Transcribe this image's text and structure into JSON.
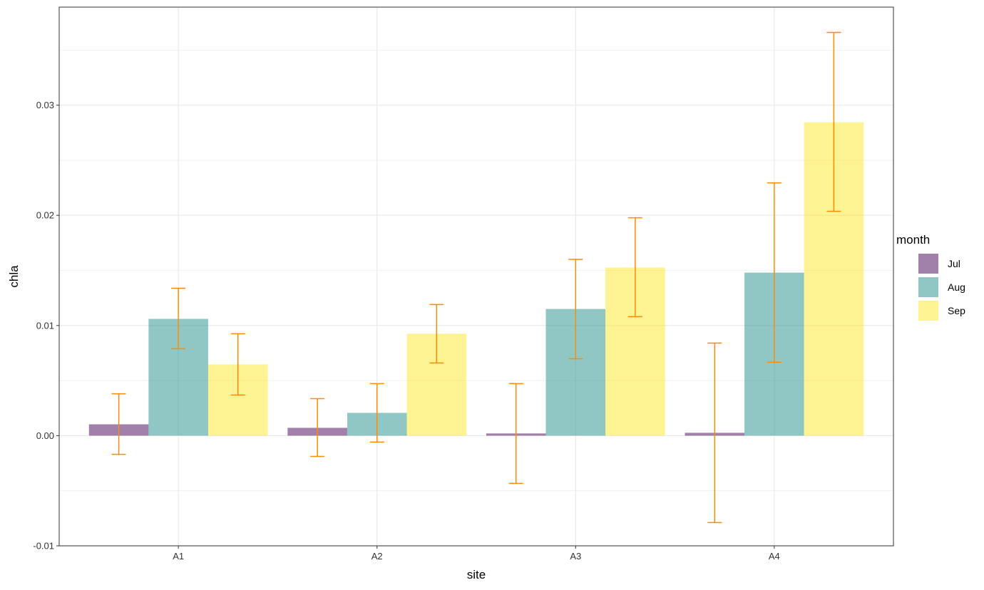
{
  "chart_data": {
    "type": "bar",
    "xlabel": "site",
    "ylabel": "chla",
    "categories": [
      "A1",
      "A2",
      "A3",
      "A4"
    ],
    "ylim": [
      -0.01,
      0.0389
    ],
    "yticks": [
      "-0.01",
      "0.00",
      "0.01",
      "0.02",
      "0.03"
    ],
    "grid": true,
    "legend": {
      "title": "month",
      "placement": "right"
    },
    "error_bar_color": "#FF8C00",
    "series": [
      {
        "name": "Jul",
        "color": "#440154",
        "values": [
          0.00103,
          0.00071,
          0.0002,
          0.00026
        ],
        "lower": [
          -0.0017,
          -0.00188,
          -0.00433,
          -0.00789
        ],
        "upper": [
          0.0038,
          0.00336,
          0.00472,
          0.0084
        ]
      },
      {
        "name": "Aug",
        "color": "#21908C",
        "values": [
          0.0106,
          0.00207,
          0.0115,
          0.0148
        ],
        "lower": [
          0.00789,
          -0.00058,
          0.00698,
          0.00666
        ],
        "upper": [
          0.01338,
          0.00472,
          0.016,
          0.02295
        ]
      },
      {
        "name": "Sep",
        "color": "#FDE725",
        "values": [
          0.00647,
          0.00925,
          0.01526,
          0.02845
        ],
        "lower": [
          0.00369,
          0.0066,
          0.0108,
          0.02037
        ],
        "upper": [
          0.00925,
          0.0119,
          0.01978,
          0.0366
        ]
      }
    ]
  }
}
